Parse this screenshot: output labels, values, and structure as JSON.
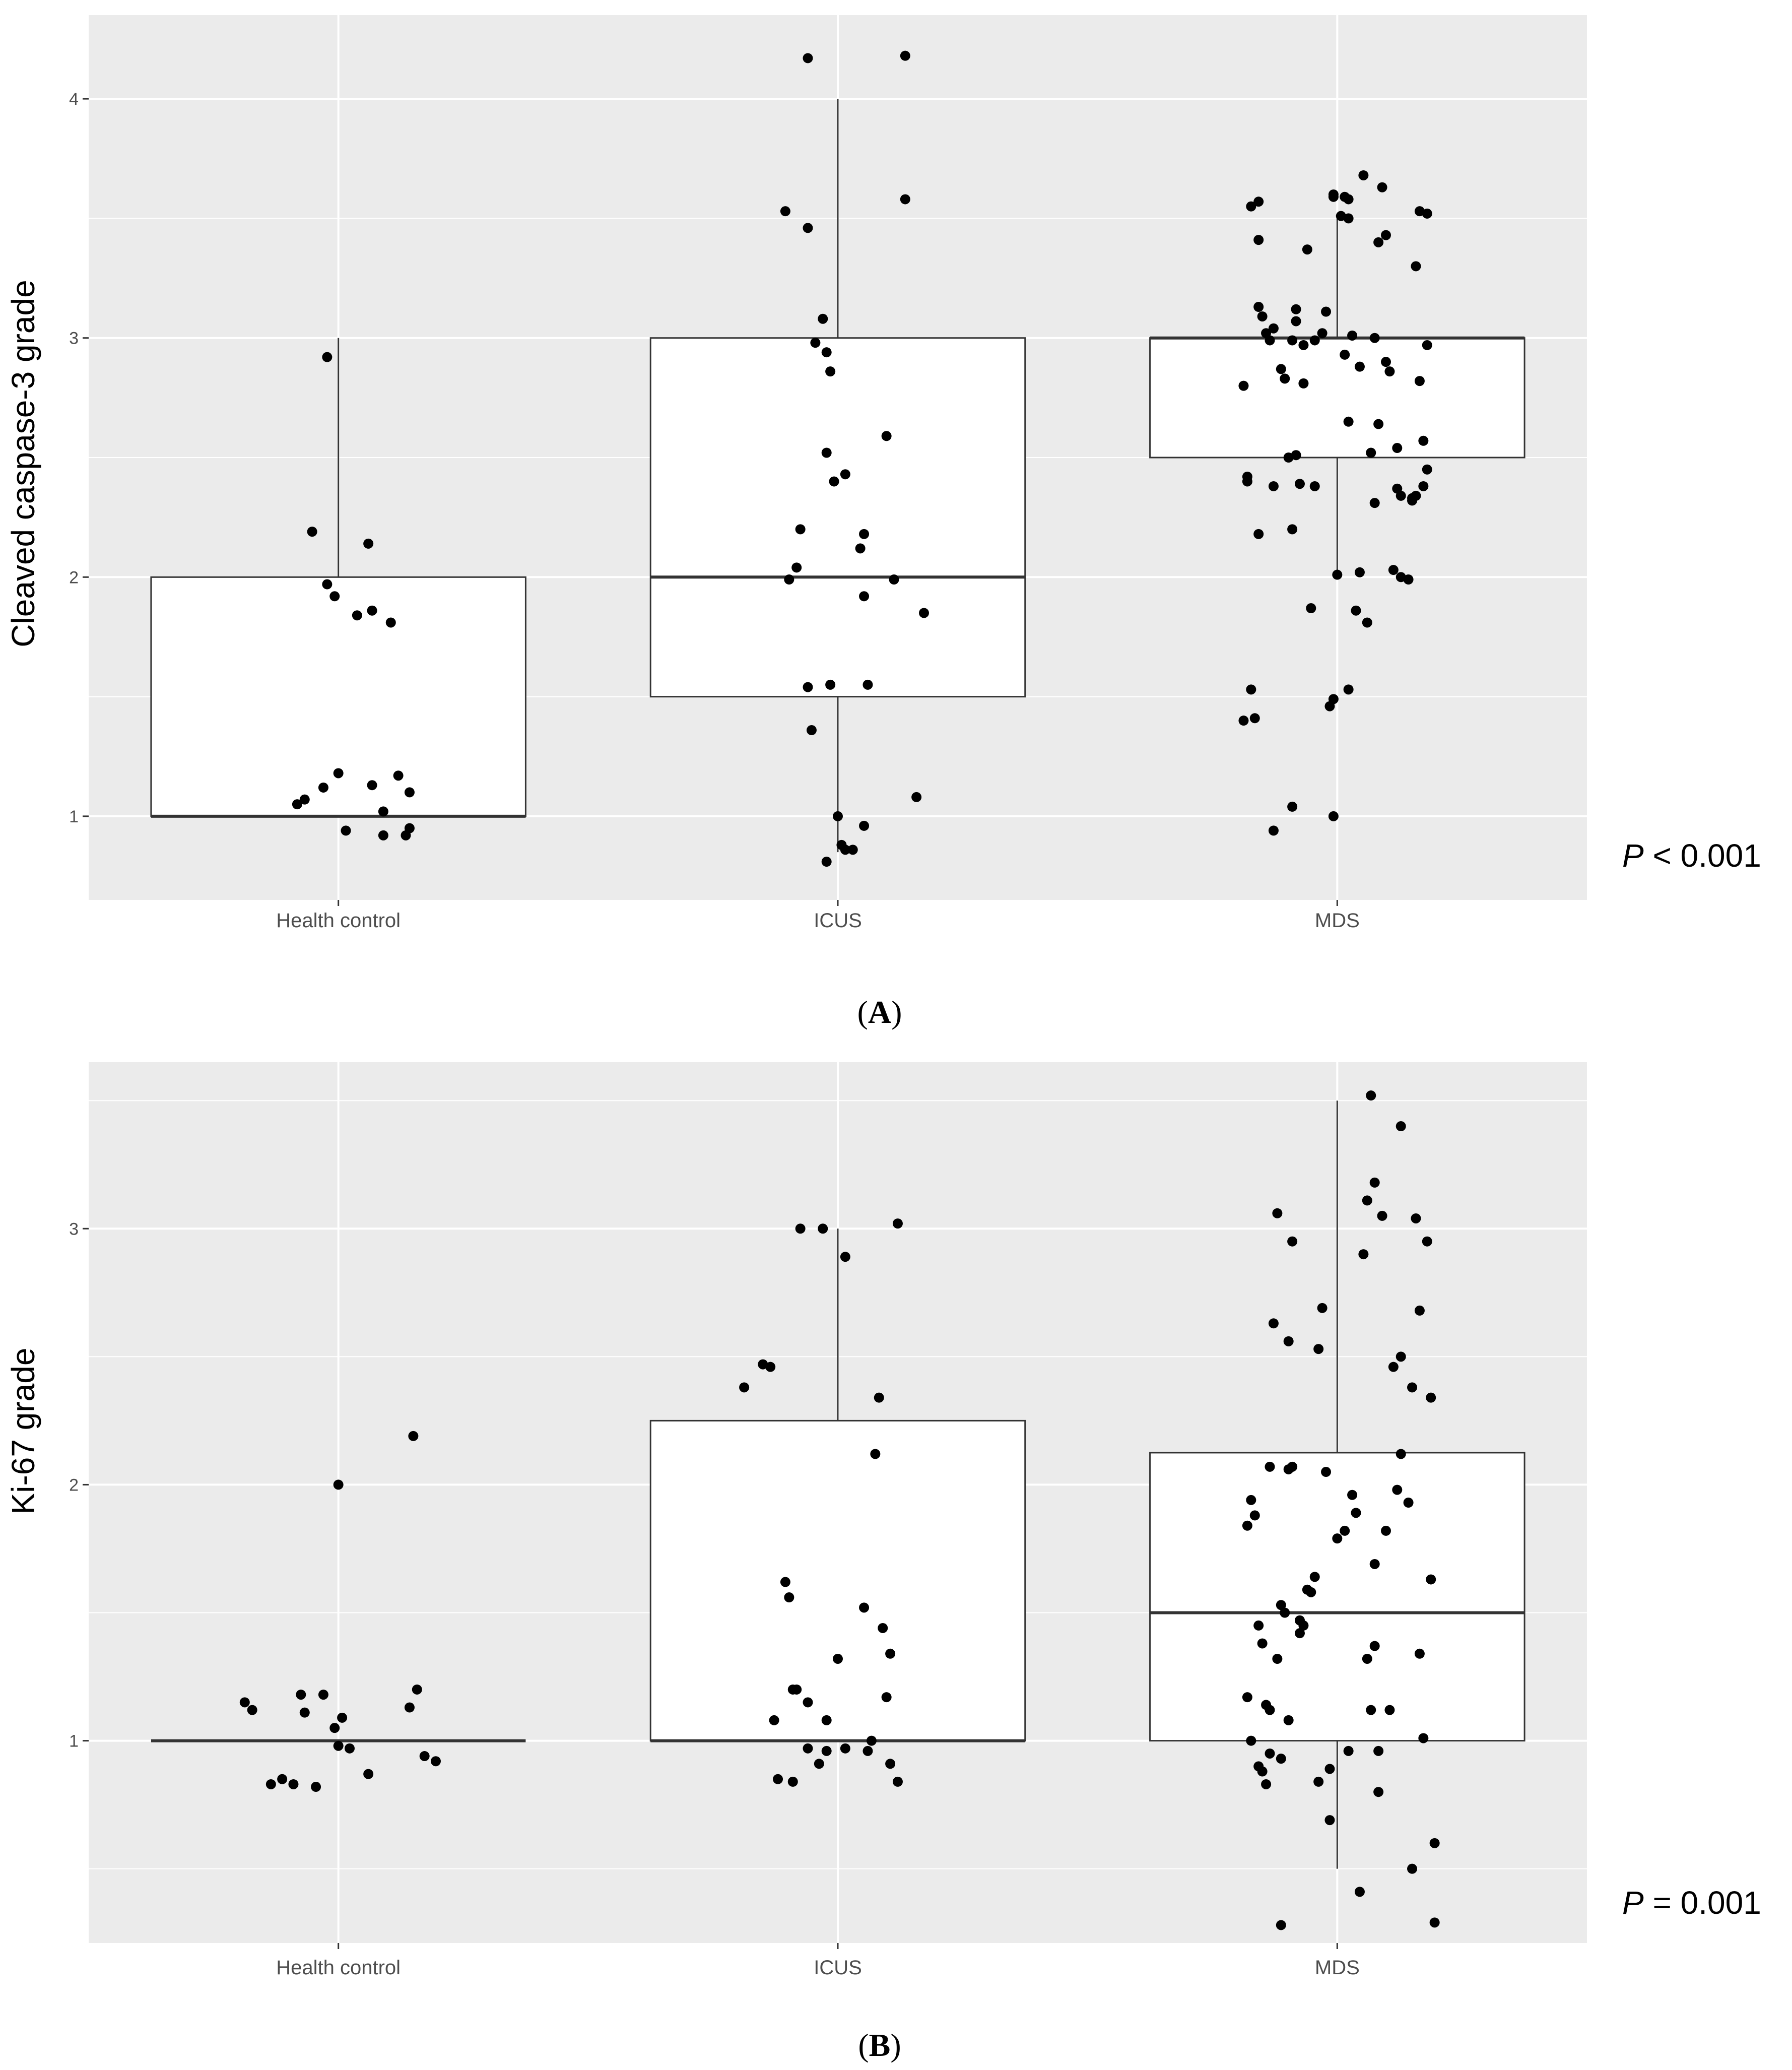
{
  "figure": {
    "panels": [
      {
        "label": "A",
        "p_prefix": "P",
        "p_suffix": " < 0.001"
      },
      {
        "label": "B",
        "p_prefix": "P",
        "p_suffix": " = 0.001"
      }
    ]
  },
  "colors": {
    "panel_bg": "#ebebeb",
    "grid_major": "#ffffff",
    "box_fill": "#ffffff",
    "box_stroke": "#333333",
    "point": "#000000"
  },
  "chart_data": [
    {
      "type": "boxplot",
      "panel_label": "A",
      "title": "",
      "xlabel": "",
      "ylabel": "Cleaved caspase-3 grade",
      "categories": [
        "Health control",
        "ICUS",
        "MDS"
      ],
      "ylim": [
        0.65,
        4.35
      ],
      "yticks": [
        1,
        2,
        3,
        4
      ],
      "ygrid_minor": [
        1.5,
        2.5,
        3.5
      ],
      "p_value_text": "P < 0.001",
      "boxes": [
        {
          "min": 1.0,
          "q1": 1.0,
          "median": 1.0,
          "q3": 2.0,
          "max": 3.0
        },
        {
          "min": 0.85,
          "q1": 1.5,
          "median": 2.0,
          "q3": 3.0,
          "max": 4.0
        },
        {
          "min": 2.0,
          "q1": 2.5,
          "median": 3.0,
          "q3": 3.0,
          "max": 3.5
        }
      ],
      "points": [
        [
          [
            -0.11,
            1.05
          ],
          [
            -0.09,
            1.07
          ],
          [
            -0.07,
            2.19
          ],
          [
            -0.04,
            1.12
          ],
          [
            -0.03,
            1.97
          ],
          [
            -0.03,
            2.92
          ],
          [
            -0.01,
            1.92
          ],
          [
            0,
            1.18
          ],
          [
            0.02,
            0.94
          ],
          [
            0.05,
            1.84
          ],
          [
            0.08,
            2.14
          ],
          [
            0.09,
            1.13
          ],
          [
            0.09,
            1.86
          ],
          [
            0.12,
            1.02
          ],
          [
            0.12,
            0.92
          ],
          [
            0.14,
            1.81
          ],
          [
            0.16,
            1.17
          ],
          [
            0.18,
            0.92
          ],
          [
            0.19,
            1.1
          ],
          [
            0.19,
            0.95
          ]
        ],
        [
          [
            -0.13,
            1.99
          ],
          [
            -0.11,
            2.04
          ],
          [
            -0.1,
            2.2
          ],
          [
            -0.14,
            3.53
          ],
          [
            -0.08,
            3.46
          ],
          [
            -0.08,
            1.54
          ],
          [
            -0.07,
            1.36
          ],
          [
            -0.08,
            4.17
          ],
          [
            -0.04,
            3.08
          ],
          [
            -0.03,
            2.94
          ],
          [
            -0.03,
            0.81
          ],
          [
            -0.02,
            1.55
          ],
          [
            -0.06,
            2.98
          ],
          [
            -0.03,
            2.52
          ],
          [
            -0.02,
            2.86
          ],
          [
            -0.01,
            2.4
          ],
          [
            0,
            1.0
          ],
          [
            0.01,
            0.88
          ],
          [
            0.02,
            0.86
          ],
          [
            0.02,
            2.43
          ],
          [
            0.04,
            0.86
          ],
          [
            0.06,
            2.12
          ],
          [
            0.07,
            2.18
          ],
          [
            0.07,
            0.96
          ],
          [
            0.07,
            1.92
          ],
          [
            0.08,
            1.55
          ],
          [
            0.13,
            2.59
          ],
          [
            0.15,
            1.99
          ],
          [
            0.18,
            3.58
          ],
          [
            0.18,
            4.18
          ],
          [
            0.21,
            1.08
          ],
          [
            0.23,
            1.85
          ]
        ],
        [
          [
            -0.25,
            2.8
          ],
          [
            -0.25,
            1.4
          ],
          [
            -0.24,
            2.4
          ],
          [
            -0.24,
            2.42
          ],
          [
            -0.23,
            1.53
          ],
          [
            -0.23,
            3.55
          ],
          [
            -0.22,
            1.41
          ],
          [
            -0.21,
            2.18
          ],
          [
            -0.21,
            3.13
          ],
          [
            -0.21,
            3.41
          ],
          [
            -0.21,
            3.57
          ],
          [
            -0.2,
            3.09
          ],
          [
            -0.19,
            3.02
          ],
          [
            -0.18,
            2.99
          ],
          [
            -0.17,
            3.04
          ],
          [
            -0.17,
            2.38
          ],
          [
            -0.17,
            0.94
          ],
          [
            -0.15,
            2.87
          ],
          [
            -0.14,
            2.83
          ],
          [
            -0.13,
            2.5
          ],
          [
            -0.12,
            1.04
          ],
          [
            -0.12,
            2.99
          ],
          [
            -0.12,
            2.2
          ],
          [
            -0.11,
            3.12
          ],
          [
            -0.11,
            2.51
          ],
          [
            -0.11,
            3.07
          ],
          [
            -0.1,
            2.39
          ],
          [
            -0.09,
            2.81
          ],
          [
            -0.09,
            2.97
          ],
          [
            -0.08,
            3.37
          ],
          [
            -0.07,
            1.87
          ],
          [
            -0.06,
            2.99
          ],
          [
            -0.06,
            2.38
          ],
          [
            -0.04,
            3.02
          ],
          [
            -0.03,
            3.11
          ],
          [
            -0.02,
            1.46
          ],
          [
            -0.01,
            3.59
          ],
          [
            -0.01,
            1.0
          ],
          [
            -0.01,
            1.49
          ],
          [
            -0.01,
            3.6
          ],
          [
            0.0,
            2.01
          ],
          [
            0.01,
            3.51
          ],
          [
            0.02,
            3.59
          ],
          [
            0.02,
            2.93
          ],
          [
            0.03,
            3.58
          ],
          [
            0.03,
            2.65
          ],
          [
            0.03,
            3.5
          ],
          [
            0.03,
            1.53
          ],
          [
            0.04,
            3.01
          ],
          [
            0.05,
            1.86
          ],
          [
            0.06,
            2.88
          ],
          [
            0.06,
            2.02
          ],
          [
            0.07,
            3.68
          ],
          [
            0.08,
            1.81
          ],
          [
            0.09,
            2.52
          ],
          [
            0.1,
            2.31
          ],
          [
            0.1,
            3.0
          ],
          [
            0.11,
            3.4
          ],
          [
            0.11,
            2.64
          ],
          [
            0.12,
            3.63
          ],
          [
            0.13,
            3.43
          ],
          [
            0.13,
            2.9
          ],
          [
            0.14,
            2.86
          ],
          [
            0.15,
            2.03
          ],
          [
            0.16,
            2.54
          ],
          [
            0.16,
            2.37
          ],
          [
            0.17,
            2.34
          ],
          [
            0.17,
            2.0
          ],
          [
            0.19,
            1.99
          ],
          [
            0.2,
            2.32
          ],
          [
            0.2,
            2.33
          ],
          [
            0.21,
            3.3
          ],
          [
            0.21,
            2.34
          ],
          [
            0.22,
            2.82
          ],
          [
            0.22,
            3.53
          ],
          [
            0.23,
            2.38
          ],
          [
            0.23,
            2.57
          ],
          [
            0.24,
            2.97
          ],
          [
            0.24,
            2.45
          ],
          [
            0.24,
            3.52
          ]
        ]
      ]
    },
    {
      "type": "boxplot",
      "panel_label": "B",
      "title": "",
      "xlabel": "",
      "ylabel": "Ki-67 grade",
      "categories": [
        "Health control",
        "ICUS",
        "MDS"
      ],
      "ylim": [
        0.21,
        3.65
      ],
      "yticks": [
        1,
        2,
        3
      ],
      "ygrid_minor": [
        0.5,
        1.5,
        2.5,
        3.5
      ],
      "p_value_text": "P = 0.001",
      "boxes": [
        {
          "min": 1.0,
          "q1": 1.0,
          "median": 1.0,
          "q3": 1.0,
          "max": 1.0
        },
        {
          "min": 1.0,
          "q1": 1.0,
          "median": 1.0,
          "q3": 2.25,
          "max": 3.0
        },
        {
          "min": 0.5,
          "q1": 1.0,
          "median": 1.5,
          "q3": 2.125,
          "max": 3.5
        }
      ],
      "points": [
        [
          [
            -0.25,
            1.15
          ],
          [
            -0.23,
            1.12
          ],
          [
            -0.18,
            0.83
          ],
          [
            -0.15,
            0.85
          ],
          [
            -0.12,
            0.83
          ],
          [
            -0.1,
            1.18
          ],
          [
            -0.06,
            0.82
          ],
          [
            -0.04,
            1.18
          ],
          [
            0,
            0.98
          ],
          [
            -0.09,
            1.11
          ],
          [
            -0.01,
            1.05
          ],
          [
            0,
            2.0
          ],
          [
            0.01,
            1.09
          ],
          [
            0.03,
            0.97
          ],
          [
            0.08,
            0.87
          ],
          [
            0.19,
            1.13
          ],
          [
            0.2,
            2.19
          ],
          [
            0.21,
            1.2
          ],
          [
            0.23,
            0.94
          ],
          [
            0.26,
            0.92
          ]
        ],
        [
          [
            -0.25,
            2.38
          ],
          [
            -0.2,
            2.47
          ],
          [
            -0.18,
            2.46
          ],
          [
            -0.17,
            1.08
          ],
          [
            -0.16,
            0.85
          ],
          [
            -0.14,
            1.62
          ],
          [
            -0.13,
            1.56
          ],
          [
            -0.12,
            1.2
          ],
          [
            -0.11,
            1.2
          ],
          [
            -0.12,
            0.84
          ],
          [
            -0.08,
            1.15
          ],
          [
            -0.08,
            0.97
          ],
          [
            -0.1,
            3.0
          ],
          [
            -0.05,
            0.91
          ],
          [
            -0.04,
            3.0
          ],
          [
            -0.03,
            0.96
          ],
          [
            -0.03,
            1.08
          ],
          [
            0.0,
            1.32
          ],
          [
            0.02,
            0.97
          ],
          [
            0.02,
            2.89
          ],
          [
            0.07,
            1.52
          ],
          [
            0.08,
            0.96
          ],
          [
            0.09,
            1.0
          ],
          [
            0.1,
            2.12
          ],
          [
            0.11,
            2.34
          ],
          [
            0.12,
            1.44
          ],
          [
            0.13,
            1.17
          ],
          [
            0.14,
            1.34
          ],
          [
            0.14,
            0.91
          ],
          [
            0.16,
            3.02
          ],
          [
            0.16,
            0.84
          ]
        ],
        [
          [
            -0.24,
            1.84
          ],
          [
            -0.24,
            1.17
          ],
          [
            -0.23,
            1.0
          ],
          [
            -0.23,
            1.94
          ],
          [
            -0.22,
            1.88
          ],
          [
            -0.21,
            0.9
          ],
          [
            -0.21,
            1.45
          ],
          [
            -0.2,
            0.88
          ],
          [
            -0.2,
            1.38
          ],
          [
            -0.19,
            1.14
          ],
          [
            -0.19,
            0.83
          ],
          [
            -0.18,
            1.12
          ],
          [
            -0.18,
            2.07
          ],
          [
            -0.18,
            0.95
          ],
          [
            -0.17,
            2.63
          ],
          [
            -0.16,
            3.06
          ],
          [
            -0.16,
            1.32
          ],
          [
            -0.15,
            1.53
          ],
          [
            -0.15,
            0.93
          ],
          [
            -0.15,
            0.28
          ],
          [
            -0.14,
            1.5
          ],
          [
            -0.13,
            1.08
          ],
          [
            -0.13,
            2.06
          ],
          [
            -0.13,
            2.56
          ],
          [
            -0.12,
            2.95
          ],
          [
            -0.12,
            2.07
          ],
          [
            -0.1,
            1.47
          ],
          [
            -0.1,
            1.42
          ],
          [
            -0.09,
            1.45
          ],
          [
            -0.08,
            1.59
          ],
          [
            -0.07,
            1.58
          ],
          [
            -0.06,
            1.64
          ],
          [
            -0.05,
            2.53
          ],
          [
            -0.05,
            0.84
          ],
          [
            -0.04,
            2.69
          ],
          [
            -0.03,
            2.05
          ],
          [
            -0.02,
            0.89
          ],
          [
            -0.02,
            0.69
          ],
          [
            0.0,
            1.79
          ],
          [
            0.02,
            1.82
          ],
          [
            0.03,
            0.96
          ],
          [
            0.04,
            1.96
          ],
          [
            0.05,
            1.89
          ],
          [
            0.06,
            0.41
          ],
          [
            0.07,
            2.9
          ],
          [
            0.08,
            1.32
          ],
          [
            0.08,
            3.11
          ],
          [
            0.09,
            1.12
          ],
          [
            0.09,
            3.52
          ],
          [
            0.1,
            1.69
          ],
          [
            0.1,
            1.37
          ],
          [
            0.1,
            3.18
          ],
          [
            0.11,
            0.8
          ],
          [
            0.11,
            0.96
          ],
          [
            0.12,
            3.05
          ],
          [
            0.13,
            1.82
          ],
          [
            0.14,
            1.12
          ],
          [
            0.15,
            2.46
          ],
          [
            0.16,
            1.98
          ],
          [
            0.17,
            2.5
          ],
          [
            0.17,
            3.4
          ],
          [
            0.17,
            2.12
          ],
          [
            0.19,
            1.93
          ],
          [
            0.2,
            2.38
          ],
          [
            0.2,
            0.5
          ],
          [
            0.21,
            3.04
          ],
          [
            0.22,
            2.68
          ],
          [
            0.22,
            1.34
          ],
          [
            0.23,
            1.01
          ],
          [
            0.24,
            2.95
          ],
          [
            0.25,
            2.34
          ],
          [
            0.25,
            1.63
          ],
          [
            0.26,
            0.6
          ],
          [
            0.26,
            0.29
          ]
        ]
      ]
    }
  ]
}
